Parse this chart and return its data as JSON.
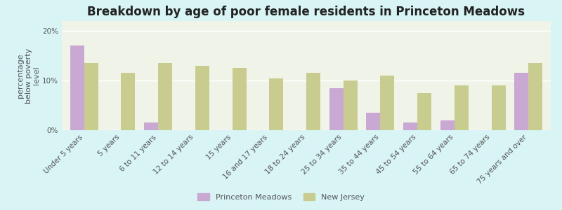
{
  "title": "Breakdown by age of poor female residents in Princeton Meadows",
  "ylabel": "percentage\nbelow poverty\nlevel",
  "categories": [
    "Under 5 years",
    "5 years",
    "6 to 11 years",
    "12 to 14 years",
    "15 years",
    "16 and 17 years",
    "18 to 24 years",
    "25 to 34 years",
    "35 to 44 years",
    "45 to 54 years",
    "55 to 64 years",
    "65 to 74 years",
    "75 years and over"
  ],
  "princeton_values": [
    17.0,
    0.0,
    1.5,
    0.0,
    0.0,
    0.0,
    0.0,
    8.5,
    3.5,
    1.5,
    2.0,
    0.0,
    11.5
  ],
  "nj_values": [
    13.5,
    11.5,
    13.5,
    13.0,
    12.5,
    10.5,
    11.5,
    10.0,
    11.0,
    7.5,
    9.0,
    9.0,
    13.5
  ],
  "princeton_color": "#c9a9d4",
  "nj_color": "#c8cc8e",
  "background_color": "#d8f4f4",
  "plot_bg_color": "#f0f4e8",
  "ylim": [
    0,
    22
  ],
  "yticks": [
    0,
    10,
    20
  ],
  "ytick_labels": [
    "0%",
    "10%",
    "20%"
  ],
  "bar_width": 0.38,
  "legend_labels": [
    "Princeton Meadows",
    "New Jersey"
  ],
  "title_fontsize": 12,
  "axis_label_fontsize": 8,
  "tick_fontsize": 7.5
}
